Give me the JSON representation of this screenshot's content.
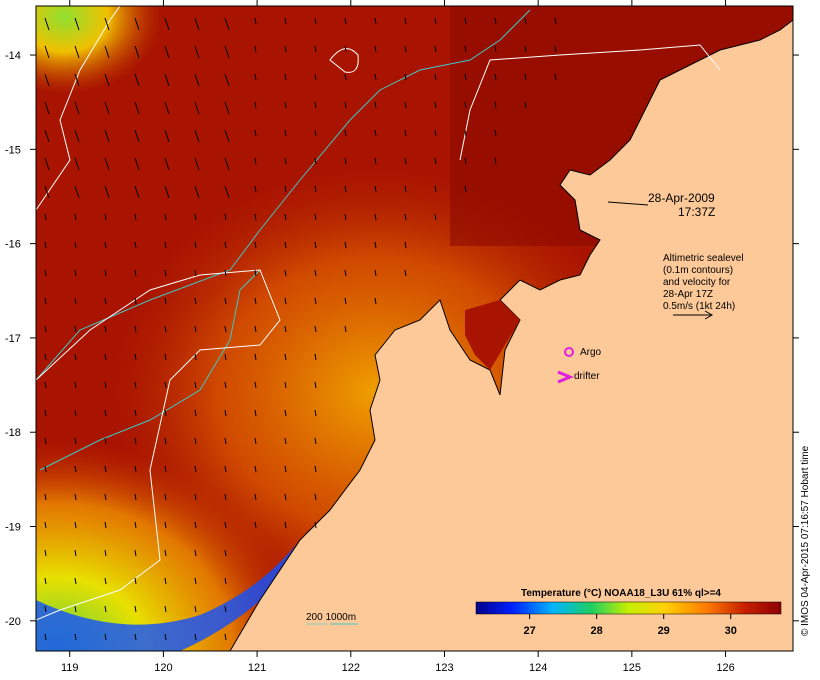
{
  "map": {
    "lon_ticks": [
      "119",
      "120",
      "121",
      "122",
      "123",
      "124",
      "125",
      "126"
    ],
    "lat_ticks": [
      "-14",
      "-15",
      "-16",
      "-17",
      "-18",
      "-19",
      "-20"
    ],
    "lon_range": [
      118.64,
      126.72
    ],
    "lat_range": [
      -20.32,
      -13.48
    ]
  },
  "annotation": {
    "date": "28-Apr-2009",
    "time": "17:37Z",
    "altimetry_lines": [
      "Altimetric sealevel",
      "(0.1m contours)",
      "and velocity for",
      "28-Apr 17Z",
      "0.5m/s (1kt 24h)"
    ]
  },
  "markers": {
    "argo_label": "Argo",
    "drifter_label": "drifter",
    "argo_color": "#e020e0",
    "drifter_color": "#e020e0"
  },
  "colorbar": {
    "title": "Temperature (°C) NOAA18_L3U 61% ql>=4",
    "ticks": [
      "27",
      "28",
      "29",
      "30"
    ],
    "tick_values": [
      27,
      28,
      29,
      30
    ],
    "range": [
      26.2,
      30.75
    ],
    "colors": [
      "#00008c",
      "#0020ff",
      "#00b4ff",
      "#20d060",
      "#c8f000",
      "#ffd000",
      "#ff8000",
      "#c82000",
      "#8c0000"
    ]
  },
  "depth_legend": {
    "label": "200  1000m",
    "color_200": "#7fd0c8",
    "color_1000": "#40c8c8"
  },
  "credit": "© IMOS 04-Apr-2015 07:16:57 Hobart time",
  "palette": {
    "land": "#fdc998",
    "sea_warm": "#a81400",
    "sea_hot": "#8c0a00",
    "contour": "#ffffff",
    "isobath": "#40c8c8"
  }
}
